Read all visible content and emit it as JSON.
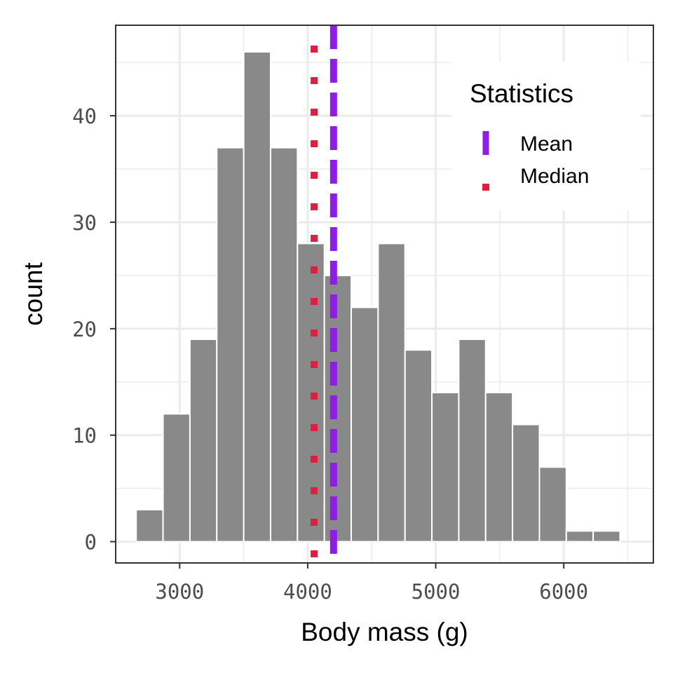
{
  "chart_data": {
    "type": "bar",
    "xlabel": "Body mass (g)",
    "ylabel": "count",
    "xlim": [
      2500,
      6700
    ],
    "ylim": [
      -2,
      48.5
    ],
    "x_ticks": [
      3000,
      4000,
      5000,
      6000
    ],
    "x_tick_labels": [
      "3000",
      "4000",
      "5000",
      "6000"
    ],
    "y_ticks": [
      0,
      10,
      20,
      30,
      40
    ],
    "y_tick_labels": [
      "0",
      "10",
      "20",
      "30",
      "40"
    ],
    "bin_width": 210,
    "bins": [
      {
        "x0": 2660,
        "x1": 2870,
        "count": 3
      },
      {
        "x0": 2870,
        "x1": 3080,
        "count": 12
      },
      {
        "x0": 3080,
        "x1": 3290,
        "count": 19
      },
      {
        "x0": 3290,
        "x1": 3500,
        "count": 37
      },
      {
        "x0": 3500,
        "x1": 3710,
        "count": 46
      },
      {
        "x0": 3710,
        "x1": 3920,
        "count": 37
      },
      {
        "x0": 3920,
        "x1": 4130,
        "count": 28
      },
      {
        "x0": 4130,
        "x1": 4340,
        "count": 25
      },
      {
        "x0": 4340,
        "x1": 4550,
        "count": 22
      },
      {
        "x0": 4550,
        "x1": 4760,
        "count": 28
      },
      {
        "x0": 4760,
        "x1": 4970,
        "count": 18
      },
      {
        "x0": 4970,
        "x1": 5180,
        "count": 14
      },
      {
        "x0": 5180,
        "x1": 5390,
        "count": 19
      },
      {
        "x0": 5390,
        "x1": 5600,
        "count": 14
      },
      {
        "x0": 5600,
        "x1": 5810,
        "count": 11
      },
      {
        "x0": 5810,
        "x1": 6020,
        "count": 7
      },
      {
        "x0": 6020,
        "x1": 6230,
        "count": 1
      },
      {
        "x0": 6230,
        "x1": 6440,
        "count": 1
      }
    ],
    "reference_lines": [
      {
        "name": "Mean",
        "value": 4202,
        "color": "#8f1de6",
        "style": "dashed"
      },
      {
        "name": "Median",
        "value": 4050,
        "color": "#dc2040",
        "style": "dotted"
      }
    ],
    "bar_color": "#898989",
    "grid": true,
    "legend": {
      "title": "Statistics",
      "placement": "top-right",
      "entries": [
        "Mean",
        "Median"
      ]
    }
  }
}
